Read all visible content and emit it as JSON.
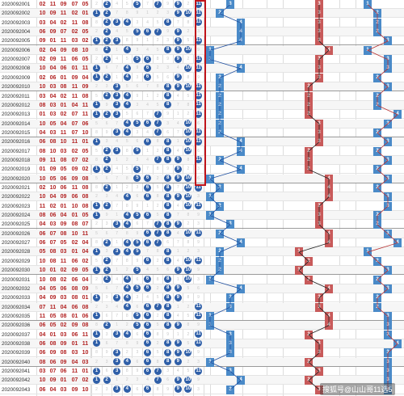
{
  "issues": [
    "2020092001",
    "2020092002",
    "2020092003",
    "2020092004",
    "2020092005",
    "2020092006",
    "2020092007",
    "2020092008",
    "2020092009",
    "2020092010",
    "2020092011",
    "2020092012",
    "2020092013",
    "2020092014",
    "2020092015",
    "2020092016",
    "2020092017",
    "2020092018",
    "2020092019",
    "2020092020",
    "2020092021",
    "2020092022",
    "2020092023",
    "2020092024",
    "2020092025",
    "2020092026",
    "2020092027",
    "2020092028",
    "2020092029",
    "2020092030",
    "2020092031",
    "2020092032",
    "2020092033",
    "2020092034",
    "2020092035",
    "2020092036",
    "2020092037",
    "2020092038",
    "2020092039",
    "2020092040",
    "2020092041",
    "2020092042",
    "2020092043"
  ],
  "draws": [
    [
      "02",
      "11",
      "09",
      "07",
      "05"
    ],
    [
      "10",
      "09",
      "11",
      "02",
      "01"
    ],
    [
      "03",
      "04",
      "02",
      "11",
      "08"
    ],
    [
      "06",
      "09",
      "07",
      "02",
      "05"
    ],
    [
      "09",
      "01",
      "11",
      "03",
      "02"
    ],
    [
      "02",
      "04",
      "09",
      "08",
      "10"
    ],
    [
      "02",
      "09",
      "11",
      "06",
      "05"
    ],
    [
      "10",
      "04",
      "06",
      "01",
      "11"
    ],
    [
      "02",
      "06",
      "01",
      "09",
      "04"
    ],
    [
      "10",
      "03",
      "08",
      "11",
      "09"
    ],
    [
      "03",
      "04",
      "02",
      "11",
      "08"
    ],
    [
      "08",
      "03",
      "01",
      "04",
      "11"
    ],
    [
      "01",
      "03",
      "02",
      "07",
      "11"
    ],
    [
      "10",
      "05",
      "04",
      "07",
      "06"
    ],
    [
      "04",
      "03",
      "11",
      "07",
      "10"
    ],
    [
      "06",
      "08",
      "10",
      "11",
      "01"
    ],
    [
      "08",
      "10",
      "03",
      "02",
      "05"
    ],
    [
      "09",
      "11",
      "08",
      "07",
      "02"
    ],
    [
      "01",
      "09",
      "05",
      "09",
      "02"
    ],
    [
      "10",
      "05",
      "06",
      "09",
      "08"
    ],
    [
      "02",
      "10",
      "06",
      "11",
      "08"
    ],
    [
      "10",
      "04",
      "09",
      "06",
      "08"
    ],
    [
      "11",
      "02",
      "01",
      "10",
      "08"
    ],
    [
      "08",
      "06",
      "04",
      "01",
      "05"
    ],
    [
      "04",
      "03",
      "09",
      "08",
      "07"
    ],
    [
      "06",
      "07",
      "08",
      "10",
      "11"
    ],
    [
      "06",
      "07",
      "05",
      "02",
      "04"
    ],
    [
      "05",
      "08",
      "03",
      "01",
      "04"
    ],
    [
      "10",
      "08",
      "11",
      "06",
      "02"
    ],
    [
      "10",
      "01",
      "02",
      "09",
      "05"
    ],
    [
      "10",
      "08",
      "02",
      "06",
      "04"
    ],
    [
      "04",
      "05",
      "06",
      "08",
      "09"
    ],
    [
      "04",
      "09",
      "03",
      "08",
      "01"
    ],
    [
      "07",
      "11",
      "04",
      "06",
      "08"
    ],
    [
      "11",
      "05",
      "08",
      "01",
      "06"
    ],
    [
      "06",
      "05",
      "02",
      "09",
      "08"
    ],
    [
      "04",
      "01",
      "03",
      "06",
      "11"
    ],
    [
      "06",
      "08",
      "09",
      "01",
      "11"
    ],
    [
      "06",
      "09",
      "08",
      "03",
      "10"
    ],
    [
      "08",
      "06",
      "09",
      "04",
      "03"
    ],
    [
      "03",
      "07",
      "06",
      "11",
      "01"
    ],
    [
      "10",
      "09",
      "01",
      "07",
      "02"
    ],
    [
      "06",
      "04",
      "03",
      "09",
      "10"
    ]
  ],
  "zone1": [
    3,
    2,
    4,
    4,
    4,
    1,
    1,
    4,
    2,
    2,
    2,
    2,
    2,
    2,
    2,
    4,
    4,
    2,
    4,
    1,
    2,
    1,
    2,
    1,
    3,
    2,
    4,
    2,
    2,
    2,
    1,
    4,
    3,
    3,
    1,
    1,
    3,
    3,
    3,
    1,
    3,
    4,
    3
  ],
  "zone2": [
    3,
    3,
    3,
    3,
    3,
    4,
    3,
    3,
    3,
    2,
    2,
    2,
    2,
    3,
    3,
    3,
    2,
    2,
    2,
    4,
    4,
    4,
    3,
    3,
    3,
    4,
    4,
    1,
    2,
    1,
    2,
    4,
    3,
    3,
    4,
    4,
    2,
    3,
    3,
    2,
    3,
    2,
    3
  ],
  "zone3": [
    1,
    2,
    2,
    2,
    3,
    1,
    3,
    3,
    2,
    3,
    2,
    2,
    4,
    3,
    2,
    3,
    2,
    3,
    2,
    3,
    2,
    3,
    3,
    2,
    2,
    3,
    4,
    1,
    2,
    3,
    2,
    3,
    2,
    2,
    3,
    3,
    3,
    4,
    3,
    3,
    3,
    3,
    3
  ],
  "watermark": "搜狐号@山山哥11选5",
  "colors": {
    "ball": "#2f5fa8",
    "draw_text": "#b22222",
    "box": "#c0141b",
    "sq_blue": "#4a8ac8",
    "sq_red": "#c85a5a",
    "zone1_line": "#1f4fa0",
    "zone2_line": "#222222",
    "zone3_line": "#b83232"
  }
}
